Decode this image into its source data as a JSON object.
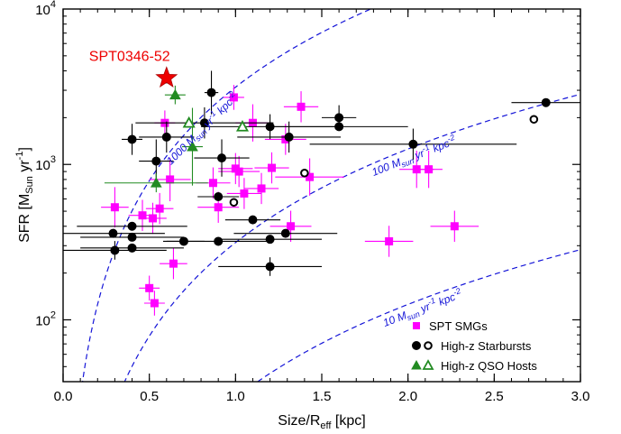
{
  "chart_data": {
    "type": "scatter",
    "xlabel": "Size/R",
    "xlabel_sub": "eff",
    "xlabel_unit": " [kpc]",
    "ylabel": "SFR  [M",
    "ylabel_sub": "Sun",
    "ylabel_unit": " yr",
    "ylabel_sup": "-1",
    "ylabel_close": "]",
    "xlim": [
      0.0,
      3.0
    ],
    "ylim": [
      40,
      10000
    ],
    "yscale": "log",
    "x_ticks": [
      "0.0",
      "0.5",
      "1.0",
      "1.5",
      "2.0",
      "2.5",
      "3.0"
    ],
    "y_ticks": [
      {
        "value": 100,
        "base": "10",
        "exp": "2"
      },
      {
        "value": 1000,
        "base": "10",
        "exp": "3"
      },
      {
        "value": 10000,
        "base": "10",
        "exp": "4"
      }
    ],
    "grid": false,
    "legend_position": "bottom-right",
    "legend": [
      {
        "label": "SPT SMGs",
        "markers": [
          "filled-square"
        ],
        "color": "#ff00ff"
      },
      {
        "label": "High-z Starbursts",
        "markers": [
          "filled-circle",
          "open-circle"
        ],
        "color": "#000000"
      },
      {
        "label": "High-z QSO Hosts",
        "markers": [
          "filled-triangle",
          "open-triangle"
        ],
        "color": "#228b22"
      }
    ],
    "density_curves": [
      {
        "density": 1000,
        "pre": "1000 M",
        "sub": "sun",
        "mid": " yr",
        "sup1": "-1",
        "post": " kpc",
        "sup2": "-2"
      },
      {
        "density": 100,
        "pre": "100 M",
        "sub": "sun",
        "mid": " yr",
        "sup1": "-1",
        "post": " kpc",
        "sup2": "-2"
      },
      {
        "density": 10,
        "pre": "10 M",
        "sub": "sun",
        "mid": " yr",
        "sup1": "-1",
        "post": " kpc",
        "sup2": "-2"
      }
    ],
    "highlight": {
      "name": "SPT0346-52",
      "x": 0.6,
      "y": 3600,
      "color": "#ee0000"
    },
    "series": [
      {
        "name": "SPT SMGs",
        "marker": "filled-square",
        "color": "#ff00ff",
        "points": [
          {
            "x": 0.3,
            "y": 530,
            "xerr": 0.08,
            "yerr": 0.13
          },
          {
            "x": 0.46,
            "y": 470,
            "xerr": 0.08,
            "yerr": 0.1
          },
          {
            "x": 0.52,
            "y": 450,
            "xerr": 0.08,
            "yerr": 0.1
          },
          {
            "x": 0.56,
            "y": 520,
            "xerr": 0.08,
            "yerr": 0.1
          },
          {
            "x": 0.5,
            "y": 160,
            "xerr": 0.06,
            "yerr": 0.08
          },
          {
            "x": 0.53,
            "y": 128,
            "xerr": 0.06,
            "yerr": 0.08
          },
          {
            "x": 0.64,
            "y": 230,
            "xerr": 0.08,
            "yerr": 0.1
          },
          {
            "x": 0.62,
            "y": 800,
            "xerr": 0.12,
            "yerr": 0.14
          },
          {
            "x": 0.59,
            "y": 1850,
            "xerr": 0.06,
            "yerr": 0.08
          },
          {
            "x": 0.87,
            "y": 760,
            "xerr": 0.1,
            "yerr": 0.1
          },
          {
            "x": 0.9,
            "y": 530,
            "xerr": 0.12,
            "yerr": 0.1
          },
          {
            "x": 0.99,
            "y": 2700,
            "xerr": 0.06,
            "yerr": 0.08
          },
          {
            "x": 1.0,
            "y": 940,
            "xerr": 0.1,
            "yerr": 0.1
          },
          {
            "x": 1.02,
            "y": 900,
            "xerr": 0.12,
            "yerr": 0.1
          },
          {
            "x": 1.05,
            "y": 650,
            "xerr": 0.1,
            "yerr": 0.1
          },
          {
            "x": 1.1,
            "y": 1850,
            "xerr": 0.1,
            "yerr": 0.12
          },
          {
            "x": 1.15,
            "y": 700,
            "xerr": 0.1,
            "yerr": 0.1
          },
          {
            "x": 1.21,
            "y": 950,
            "xerr": 0.1,
            "yerr": 0.1
          },
          {
            "x": 1.29,
            "y": 1450,
            "xerr": 0.12,
            "yerr": 0.1
          },
          {
            "x": 1.32,
            "y": 400,
            "xerr": 0.12,
            "yerr": 0.1
          },
          {
            "x": 1.38,
            "y": 2350,
            "xerr": 0.1,
            "yerr": 0.1
          },
          {
            "x": 1.43,
            "y": 830,
            "xerr": 0.2,
            "yerr": 0.12
          },
          {
            "x": 1.89,
            "y": 320,
            "xerr": 0.14,
            "yerr": 0.1
          },
          {
            "x": 2.05,
            "y": 930,
            "xerr": 0.1,
            "yerr": 0.12
          },
          {
            "x": 2.12,
            "y": 930,
            "xerr": 0.08,
            "yerr": 0.12
          },
          {
            "x": 2.27,
            "y": 400,
            "xerr": 0.14,
            "yerr": 0.1
          }
        ]
      },
      {
        "name": "High-z Starbursts",
        "marker": "filled-circle",
        "color": "#000000",
        "points": [
          {
            "x": 0.29,
            "y": 360,
            "xerr": 0.3,
            "yerr": 0.0
          },
          {
            "x": 0.3,
            "y": 280,
            "xerr": 0.3,
            "yerr": 0.06
          },
          {
            "x": 0.4,
            "y": 400,
            "xerr": 0.32,
            "yerr": 0.0
          },
          {
            "x": 0.4,
            "y": 340,
            "xerr": 0.3,
            "yerr": 0.0
          },
          {
            "x": 0.4,
            "y": 290,
            "xerr": 0.3,
            "yerr": 0.0
          },
          {
            "x": 0.4,
            "y": 1450,
            "xerr": 0.06,
            "yerr": 0.1
          },
          {
            "x": 0.54,
            "y": 1050,
            "xerr": 0.1,
            "yerr": 0.14
          },
          {
            "x": 0.6,
            "y": 1500,
            "xerr": 0.16,
            "yerr": 0.1
          },
          {
            "x": 0.7,
            "y": 320,
            "xerr": 0.12,
            "yerr": 0.0
          },
          {
            "x": 0.82,
            "y": 1850,
            "xerr": 0.4,
            "yerr": 0.1
          },
          {
            "x": 0.86,
            "y": 2900,
            "xerr": 0.04,
            "yerr": 0.14
          },
          {
            "x": 0.9,
            "y": 320,
            "xerr": 0.3,
            "yerr": 0.0
          },
          {
            "x": 0.92,
            "y": 1100,
            "xerr": 0.16,
            "yerr": 0.12
          },
          {
            "x": 0.9,
            "y": 620,
            "xerr": 0.12,
            "yerr": 0.0
          },
          {
            "x": 1.1,
            "y": 440,
            "xerr": 0.16,
            "yerr": 0.0
          },
          {
            "x": 1.2,
            "y": 1750,
            "xerr": 0.4,
            "yerr": 0.08
          },
          {
            "x": 1.2,
            "y": 330,
            "xerr": 0.3,
            "yerr": 0.0
          },
          {
            "x": 1.2,
            "y": 220,
            "xerr": 0.3,
            "yerr": 0.06
          },
          {
            "x": 1.29,
            "y": 360,
            "xerr": 0.3,
            "yerr": 0.0
          },
          {
            "x": 1.31,
            "y": 1500,
            "xerr": 0.3,
            "yerr": 0.1
          },
          {
            "x": 1.6,
            "y": 2000,
            "xerr": 0.1,
            "yerr": 0.08
          },
          {
            "x": 1.6,
            "y": 1750,
            "xerr": 0.4,
            "yerr": 0.0
          },
          {
            "x": 2.03,
            "y": 1350,
            "xerr": 0.6,
            "yerr": 0.1
          },
          {
            "x": 2.8,
            "y": 2500,
            "xerr": 0.2,
            "yerr": 0.0
          }
        ]
      },
      {
        "name": "High-z Starbursts (open)",
        "marker": "open-circle",
        "color": "#000000",
        "points": [
          {
            "x": 0.99,
            "y": 570
          },
          {
            "x": 1.4,
            "y": 880
          },
          {
            "x": 2.73,
            "y": 1950
          }
        ]
      },
      {
        "name": "High-z QSO Hosts",
        "marker": "filled-triangle",
        "color": "#228b22",
        "points": [
          {
            "x": 0.54,
            "y": 760,
            "xerr": 0.3,
            "yerr": 0.06
          },
          {
            "x": 0.65,
            "y": 2800,
            "xerr": 0.06,
            "yerr": 0.06
          },
          {
            "x": 0.75,
            "y": 1300,
            "xerr": 0.06,
            "yerr": 0.25
          }
        ]
      },
      {
        "name": "High-z QSO Hosts (open)",
        "marker": "open-triangle",
        "color": "#228b22",
        "points": [
          {
            "x": 0.73,
            "y": 1850
          },
          {
            "x": 1.04,
            "y": 1750
          }
        ]
      }
    ]
  }
}
